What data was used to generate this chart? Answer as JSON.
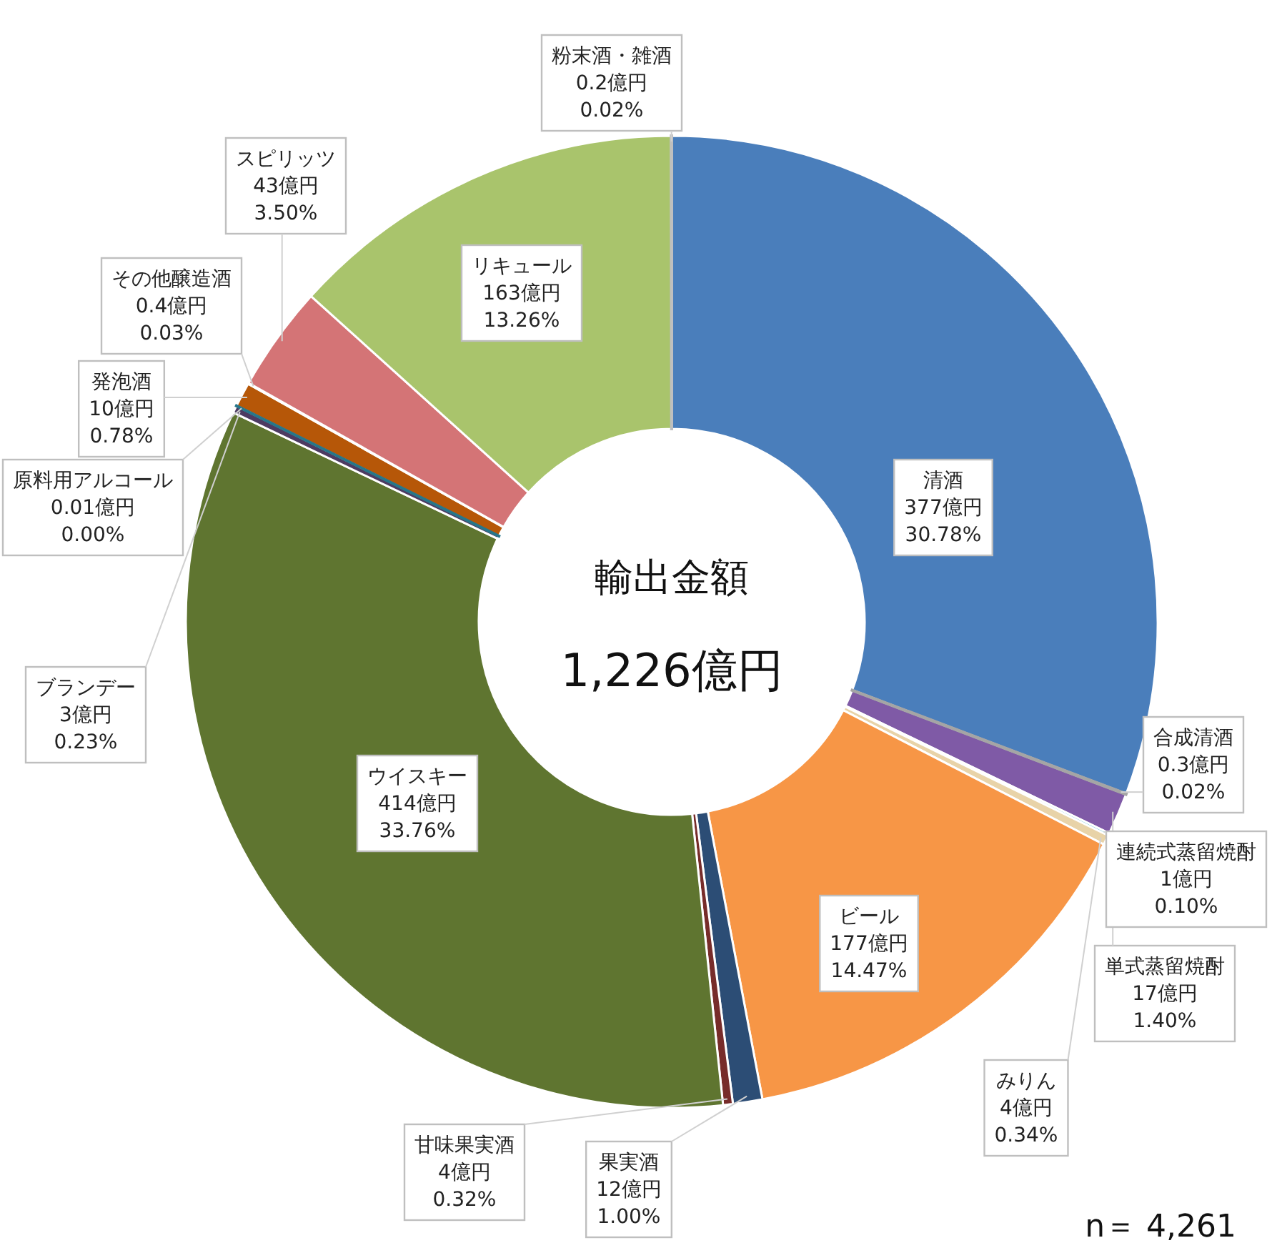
{
  "chart_data": {
    "type": "donut",
    "categories": [
      "清酒",
      "合成清酒",
      "単式蒸留焼酎",
      "連続式蒸留焼酎",
      "みりん",
      "ビール",
      "果実酒",
      "甘味果実酒",
      "ウイスキー",
      "ブランデー",
      "原料用アルコール",
      "発泡酒",
      "その他醸造酒",
      "スピリッツ",
      "リキュール",
      "粉末酒・雑酒"
    ],
    "values": [
      377,
      0.3,
      17,
      1,
      4,
      177,
      12,
      4,
      414,
      3,
      0.01,
      10,
      0.4,
      43,
      163,
      0.2
    ],
    "colors": [
      "#4a7ebb",
      "#a5a5a5",
      "#7f5aa6",
      "#3fb3cf",
      "#e8d3a8",
      "#f79646",
      "#2c4d75",
      "#772c2a",
      "#5f7530",
      "#4d3b62",
      "#27768a",
      "#b65708",
      "#d9d9d9",
      "#d47476",
      "#a9c46c",
      "#bfbfbf"
    ],
    "value_labels": [
      "377億円\n30.78%",
      "0.3億円\n0.02%",
      "17億円\n1.40%",
      "1億円\n0.10%",
      "4億円\n0.34%",
      "177億円\n14.47%",
      "12億円\n1.00%",
      "4億円\n0.32%",
      "414億円\n33.76%",
      "3億円\n0.23%",
      "0.01億円\n0.00%",
      "10億円\n0.78%",
      "0.4億円\n0.03%",
      "43億円\n3.50%",
      "163億円\n13.26%",
      "0.2億円\n0.02%"
    ],
    "annotations": [
      "輸出金額",
      "1,226億円",
      "n＝ 4,261"
    ]
  }
}
